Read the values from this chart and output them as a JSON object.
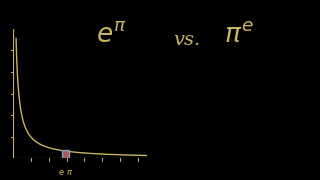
{
  "bg_color": "#000000",
  "curve_color": "#c8b560",
  "axis_color": "#c8b560",
  "rect_fill_color": "#c06070",
  "rect_edge_color": "#7aabba",
  "label_color": "#c8b560",
  "title_color": "#c8b560",
  "e_val": 2.71828,
  "pi_val": 3.14159,
  "xmin": 0.0,
  "xmax": 7.5,
  "ymin": 0.0,
  "ymax": 6.0,
  "curve_xstart": 0.18,
  "curve_xend": 7.5,
  "tick_positions_x": [
    1.0,
    2.0,
    3.0,
    4.0,
    5.0,
    6.0,
    7.0
  ],
  "tick_positions_y": [
    1.0,
    2.0,
    3.0,
    4.0,
    5.0
  ]
}
